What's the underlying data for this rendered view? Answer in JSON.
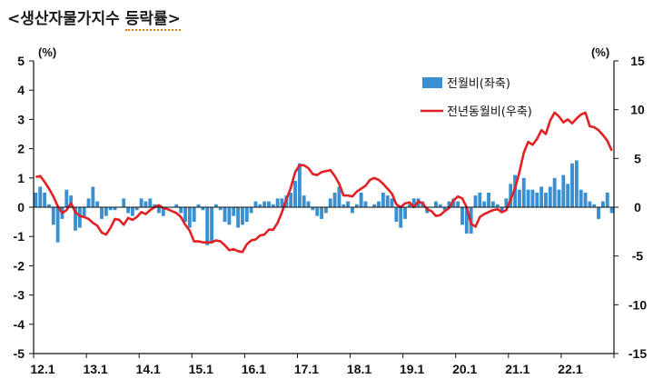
{
  "title": {
    "prefix": "<생산자물가지수",
    "suffix": "등락률>"
  },
  "chart_data": {
    "type": "bar+line",
    "x_tick_labels": [
      "12.1",
      "13.1",
      "14.1",
      "15.1",
      "16.1",
      "17.1",
      "18.1",
      "19.1",
      "20.1",
      "21.1",
      "22.1"
    ],
    "left_axis": {
      "unit": "(%)",
      "range": [
        -5,
        5
      ],
      "ticks": [
        5,
        4,
        3,
        2,
        1,
        0,
        -1,
        -2,
        -3,
        -4,
        -5
      ]
    },
    "right_axis": {
      "unit": "(%)",
      "range": [
        -15,
        15
      ],
      "ticks": [
        15,
        10,
        5,
        0,
        -5,
        -10,
        -15
      ]
    },
    "legend": {
      "position": "top-right",
      "entries": [
        "전월비(좌축)",
        "전년동월비(우축)"
      ]
    },
    "colors": {
      "bar": "#3a8fd0",
      "line": "#e32024",
      "axis": "#111111"
    },
    "series": [
      {
        "name": "전월비(좌축)",
        "type": "bar",
        "axis": "left",
        "values": [
          0.5,
          0.7,
          0.5,
          0.1,
          -0.6,
          -1.2,
          -0.4,
          0.6,
          0.4,
          -0.8,
          -0.7,
          -0.3,
          0.3,
          0.7,
          0.2,
          -0.4,
          -0.3,
          -0.1,
          -0.1,
          0.0,
          0.3,
          -0.2,
          -0.3,
          -0.1,
          0.3,
          0.2,
          0.3,
          0.1,
          -0.2,
          -0.3,
          0.0,
          0.0,
          0.1,
          -0.2,
          -0.5,
          -0.7,
          -0.5,
          0.1,
          -0.1,
          -1.3,
          -1.2,
          0.1,
          -0.1,
          -0.5,
          -0.6,
          -0.3,
          -0.7,
          -0.6,
          -0.5,
          -0.2,
          0.2,
          0.1,
          0.2,
          0.2,
          0.1,
          0.3,
          0.3,
          0.4,
          0.5,
          0.9,
          1.5,
          0.4,
          0.2,
          -0.1,
          -0.3,
          -0.4,
          -0.2,
          0.3,
          0.5,
          0.7,
          0.1,
          0.2,
          -0.2,
          0.1,
          0.5,
          0.2,
          0.0,
          0.1,
          0.2,
          0.5,
          0.4,
          0.3,
          -0.5,
          -0.7,
          -0.4,
          0.1,
          0.3,
          0.3,
          0.2,
          -0.2,
          0.0,
          0.2,
          0.1,
          -0.1,
          0.2,
          0.3,
          0.2,
          -0.6,
          -0.9,
          -0.9,
          0.4,
          0.5,
          0.2,
          0.5,
          0.2,
          0.1,
          -0.2,
          0.3,
          0.8,
          1.1,
          0.6,
          1.0,
          0.6,
          0.6,
          0.5,
          0.7,
          0.5,
          0.7,
          1.0,
          0.6,
          1.1,
          0.8,
          1.5,
          1.6,
          0.6,
          0.5,
          0.2,
          0.1,
          -0.4,
          0.2,
          0.5,
          -0.2
        ]
      },
      {
        "name": "전년동월비(우축)",
        "type": "line",
        "axis": "right",
        "values": [
          3.1,
          3.2,
          2.6,
          1.9,
          1.1,
          0.1,
          -0.6,
          -0.3,
          0.4,
          -0.5,
          -0.9,
          -1.0,
          -1.2,
          -1.6,
          -1.9,
          -2.6,
          -2.8,
          -2.1,
          -1.2,
          -1.3,
          -1.8,
          -1.1,
          -1.3,
          -1.0,
          -0.5,
          -0.7,
          -0.3,
          0.0,
          0.2,
          -0.1,
          -0.2,
          -0.4,
          -0.6,
          -1.0,
          -1.8,
          -2.4,
          -3.5,
          -3.5,
          -3.6,
          -3.6,
          -3.6,
          -3.4,
          -3.5,
          -3.9,
          -4.4,
          -4.3,
          -4.5,
          -4.6,
          -3.8,
          -3.4,
          -3.3,
          -2.9,
          -2.8,
          -2.3,
          -2.3,
          -1.6,
          -0.5,
          0.8,
          2.0,
          3.6,
          4.3,
          4.3,
          4.0,
          3.4,
          3.3,
          3.6,
          3.7,
          3.8,
          3.2,
          2.4,
          1.2,
          1.2,
          1.1,
          1.6,
          1.9,
          2.2,
          2.8,
          3.0,
          2.8,
          2.4,
          1.9,
          1.4,
          0.3,
          0.0,
          0.4,
          0.5,
          0.0,
          0.6,
          0.4,
          -0.2,
          -0.4,
          -0.9,
          -0.8,
          -0.4,
          -0.1,
          0.7,
          1.1,
          0.9,
          0.0,
          -1.7,
          -2.0,
          -1.0,
          -0.7,
          -0.5,
          -0.3,
          -0.2,
          -0.5,
          -0.3,
          0.8,
          1.9,
          3.6,
          5.6,
          6.7,
          6.4,
          7.0,
          7.9,
          7.5,
          8.9,
          9.7,
          9.3,
          8.7,
          9.0,
          8.6,
          9.1,
          9.5,
          9.7,
          8.3,
          8.2,
          7.9,
          7.4,
          6.8,
          5.8
        ]
      }
    ]
  }
}
